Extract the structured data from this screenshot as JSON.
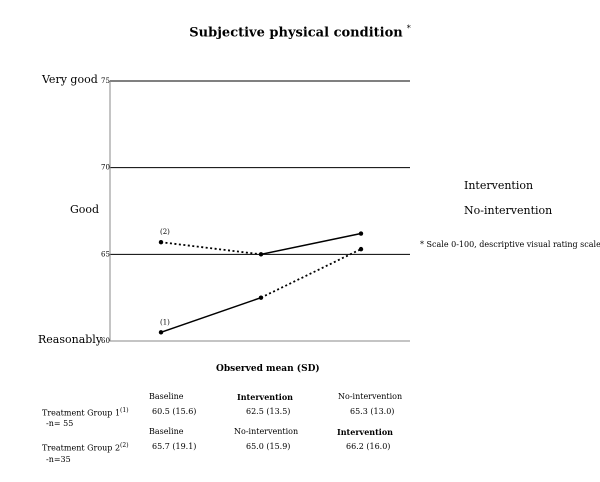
{
  "title": "Subjective physical condition",
  "title_mark": "*",
  "legend": {
    "intervention": "Intervention",
    "no_intervention": "No-intervention",
    "footnote": "* Scale 0-100, descriptive visual rating scales"
  },
  "colors": {
    "line": "#000000",
    "grid": "#000000"
  },
  "chart_data": {
    "type": "line",
    "title": "Subjective physical condition",
    "xlabel": "Observed mean (SD)",
    "ylabel": "",
    "ylim": [
      60,
      75
    ],
    "yticks": [
      60,
      65,
      70,
      75
    ],
    "ytick_labels": [
      "60",
      "65",
      "70",
      "75"
    ],
    "y_category_labels": [
      {
        "label": "Very good",
        "value": 75
      },
      {
        "label": "Good",
        "value": 67.5
      },
      {
        "label": "Reasonably",
        "value": 60
      }
    ],
    "x": [
      0,
      1,
      2
    ],
    "grid": true,
    "legend_position": "right",
    "series": [
      {
        "marker": "(1)",
        "values": [
          60.5,
          62.5,
          65.3
        ],
        "segment_styles": [
          "solid",
          "dashed"
        ]
      },
      {
        "marker": "(2)",
        "values": [
          65.7,
          65.0,
          66.2
        ],
        "segment_styles": [
          "dashed",
          "solid"
        ]
      }
    ]
  },
  "table": {
    "group1": {
      "label": "Treatment Group 1",
      "sup": "(1)",
      "n": "-n= 55",
      "headers": [
        "Baseline",
        "Intervention",
        "No-intervention"
      ],
      "values": [
        "60.5 (15.6)",
        "62.5 (13.5)",
        "65.3 (13.0)"
      ]
    },
    "group2": {
      "label": "Treatment Group 2",
      "sup": "(2)",
      "n": "-n=35",
      "headers": [
        "Baseline",
        "No-intervention",
        "Intervention"
      ],
      "values": [
        "65.7 (19.1)",
        "65.0 (15.9)",
        "66.2 (16.0)"
      ]
    }
  }
}
